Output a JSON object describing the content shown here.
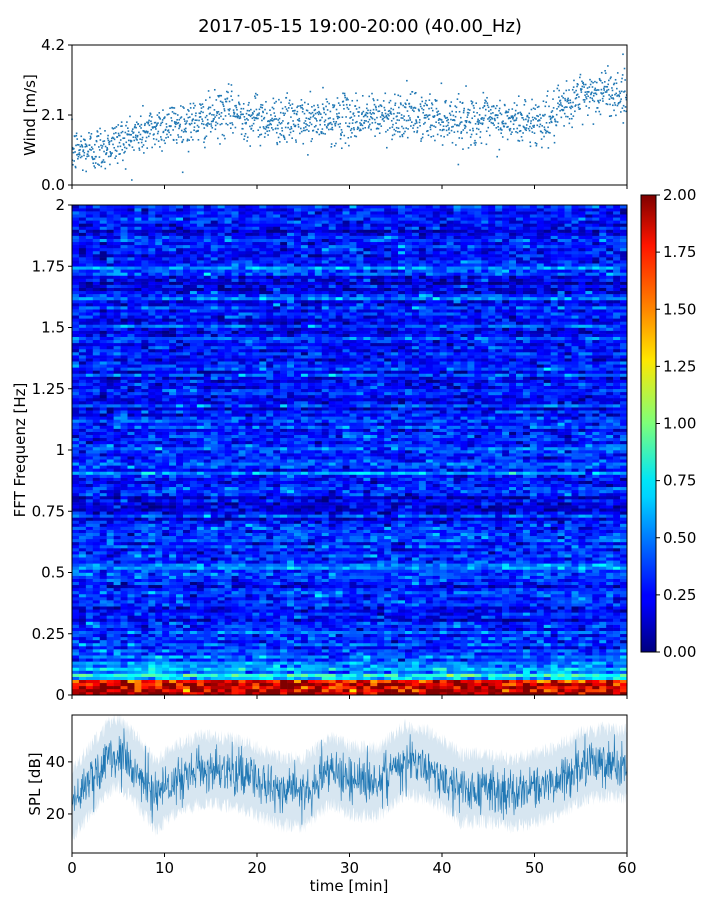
{
  "title": "2017-05-15 19:00-20:00 (40.00_Hz)",
  "chart_data": [
    {
      "id": "wind",
      "type": "scatter",
      "ylabel": "Wind [m/s]",
      "xlim": [
        0,
        60
      ],
      "ylim": [
        0,
        4.2
      ],
      "yticks": [
        0,
        2.1,
        4.2
      ],
      "ytick_labels": [
        "0.0",
        "2.1",
        "4.2"
      ],
      "marker_color": "#1f77b4",
      "trend_points": [
        [
          0,
          1.0
        ],
        [
          3,
          1.1
        ],
        [
          5,
          1.3
        ],
        [
          8,
          1.6
        ],
        [
          10,
          1.8
        ],
        [
          14,
          1.9
        ],
        [
          17,
          2.2
        ],
        [
          20,
          2.0
        ],
        [
          25,
          1.9
        ],
        [
          30,
          2.0
        ],
        [
          35,
          2.1
        ],
        [
          40,
          2.0
        ],
        [
          45,
          1.9
        ],
        [
          50,
          1.9
        ],
        [
          52,
          2.0
        ],
        [
          55,
          2.7
        ],
        [
          58,
          2.8
        ],
        [
          60,
          2.7
        ]
      ]
    },
    {
      "id": "spectrogram",
      "type": "heatmap",
      "ylabel": "FFT Frequenz [Hz]",
      "xlim": [
        0,
        60
      ],
      "ylim": [
        0,
        2
      ],
      "yticks": [
        0,
        0.25,
        0.5,
        0.75,
        1,
        1.25,
        1.5,
        1.75,
        2
      ],
      "ytick_labels": [
        "0",
        "0.25",
        "0.5",
        "0.75",
        "1",
        "1.25",
        "1.5",
        "1.75",
        "2"
      ],
      "colormap": "jet",
      "color_range": [
        0,
        2
      ],
      "colorbar_ticks": [
        "0.00",
        "0.25",
        "0.50",
        "0.75",
        "1.00",
        "1.25",
        "1.50",
        "1.75",
        "2.00"
      ],
      "typical_level": 0.3,
      "bright_band_frequency_hz": 0.05
    },
    {
      "id": "spl",
      "type": "line",
      "xlabel": "time [min]",
      "ylabel": "SPL [dB]",
      "xlim": [
        0,
        60
      ],
      "ylim": [
        5,
        58
      ],
      "xticks": [
        0,
        10,
        20,
        30,
        40,
        50,
        60
      ],
      "xtick_labels": [
        "0",
        "10",
        "20",
        "30",
        "40",
        "50",
        "60"
      ],
      "yticks": [
        20,
        40
      ],
      "ytick_labels": [
        "20",
        "40"
      ],
      "line_color": "#1f77b4",
      "trend_points": [
        [
          0,
          24
        ],
        [
          2,
          33
        ],
        [
          4,
          42
        ],
        [
          5,
          44
        ],
        [
          7,
          37
        ],
        [
          9,
          27
        ],
        [
          11,
          33
        ],
        [
          14,
          37
        ],
        [
          17,
          36
        ],
        [
          19,
          34
        ],
        [
          22,
          29
        ],
        [
          25,
          28
        ],
        [
          28,
          37
        ],
        [
          30,
          33
        ],
        [
          33,
          32
        ],
        [
          36,
          41
        ],
        [
          39,
          38
        ],
        [
          42,
          30
        ],
        [
          45,
          30
        ],
        [
          48,
          28
        ],
        [
          50,
          30
        ],
        [
          52,
          32
        ],
        [
          55,
          38
        ],
        [
          58,
          40
        ],
        [
          60,
          39
        ]
      ]
    }
  ]
}
